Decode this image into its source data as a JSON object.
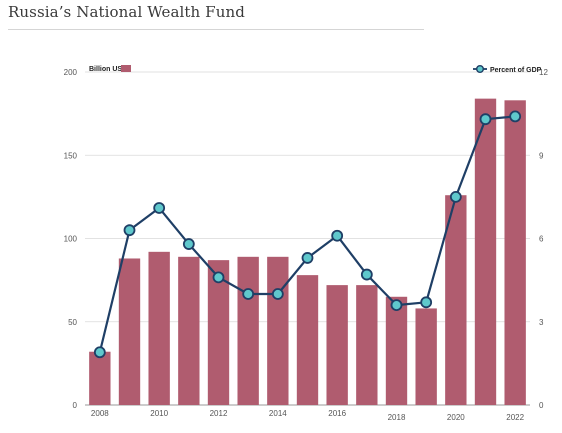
{
  "page": {
    "title": "Russia’s National Wealth Fund"
  },
  "colors": {
    "bar": "#b05c6f",
    "line": "#1f3f66",
    "marker_fill": "#5fc8cc",
    "grid": "#d9d9d9",
    "axis_text": "#555555"
  },
  "chart_data": {
    "type": "bar",
    "title": "",
    "x": [
      2008,
      2009,
      2010,
      2011,
      2012,
      2013,
      2014,
      2015,
      2016,
      2017,
      2018,
      2019,
      2020,
      2021,
      2022
    ],
    "x_tick_labels": [
      "2008",
      "2010",
      "2012",
      "2014",
      "2016",
      "2018",
      "2020",
      "2022"
    ],
    "y_left": {
      "label": "Billion USD",
      "ylim": [
        0,
        200
      ],
      "ticks": [
        "0",
        "50",
        "100",
        "150",
        "200"
      ]
    },
    "y_right": {
      "label": "Percent of GDP",
      "ylim": [
        0,
        12
      ],
      "ticks": [
        "0",
        "3",
        "6",
        "9",
        "12"
      ]
    },
    "grid": true,
    "legend": {
      "bar_position": "top-left",
      "line_position": "top-right"
    },
    "series": [
      {
        "name": "Billion USD",
        "type": "bar",
        "axis": "left",
        "values": [
          32,
          88,
          92,
          89,
          87,
          89,
          89,
          78,
          72,
          72,
          65,
          58,
          126,
          184,
          183
        ]
      },
      {
        "name": "Percent of GDP",
        "type": "line",
        "axis": "right",
        "values": [
          1.9,
          6.3,
          7.1,
          5.8,
          4.6,
          4.0,
          4.0,
          5.3,
          6.1,
          4.7,
          3.6,
          3.7,
          7.5,
          10.3,
          10.4
        ]
      }
    ]
  }
}
